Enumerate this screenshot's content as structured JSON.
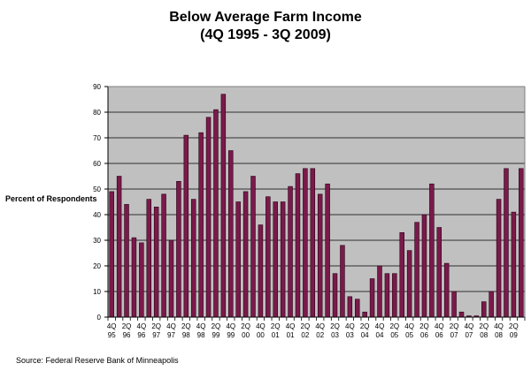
{
  "chart_data": {
    "type": "bar",
    "title_line1": "Below Average Farm Income",
    "title_line2": "(4Q 1995 - 3Q 2009)",
    "ylabel": "Percent of Respondents",
    "xlabel": "",
    "source": "Source: Federal Reserve Bank of Minneapolis",
    "ylim": [
      0,
      90
    ],
    "yticks": [
      0,
      10,
      20,
      30,
      40,
      50,
      60,
      70,
      80,
      90
    ],
    "grid": true,
    "colors": {
      "bar_fill": "#7a1a4a",
      "bar_edge": "#2a0016",
      "plot_bg": "#c0c0c0",
      "grid": "#000000"
    },
    "categories": [
      "4Q95",
      "1Q96",
      "2Q96",
      "3Q96",
      "4Q96",
      "1Q97",
      "2Q97",
      "3Q97",
      "4Q97",
      "1Q98",
      "2Q98",
      "3Q98",
      "4Q98",
      "1Q99",
      "2Q99",
      "3Q99",
      "4Q99",
      "1Q00",
      "2Q00",
      "3Q00",
      "4Q00",
      "1Q01",
      "2Q01",
      "3Q01",
      "4Q01",
      "1Q02",
      "2Q02",
      "3Q02",
      "4Q02",
      "1Q03",
      "2Q03",
      "3Q03",
      "4Q03",
      "1Q04",
      "2Q04",
      "3Q04",
      "4Q04",
      "1Q05",
      "2Q05",
      "3Q05",
      "4Q05",
      "1Q06",
      "2Q06",
      "3Q06",
      "4Q06",
      "1Q07",
      "2Q07",
      "3Q07",
      "4Q07",
      "1Q08",
      "2Q08",
      "3Q08",
      "4Q08",
      "1Q09",
      "2Q09",
      "3Q09"
    ],
    "tick_labels": [
      {
        "index": 0,
        "q": "4Q",
        "yr": "95"
      },
      {
        "index": 2,
        "q": "2Q",
        "yr": "96"
      },
      {
        "index": 4,
        "q": "4Q",
        "yr": "96"
      },
      {
        "index": 6,
        "q": "2Q",
        "yr": "97"
      },
      {
        "index": 8,
        "q": "4Q",
        "yr": "97"
      },
      {
        "index": 10,
        "q": "2Q",
        "yr": "98"
      },
      {
        "index": 12,
        "q": "4Q",
        "yr": "98"
      },
      {
        "index": 14,
        "q": "2Q",
        "yr": "99"
      },
      {
        "index": 16,
        "q": "4Q",
        "yr": "99"
      },
      {
        "index": 18,
        "q": "2Q",
        "yr": "00"
      },
      {
        "index": 20,
        "q": "4Q",
        "yr": "00"
      },
      {
        "index": 22,
        "q": "2Q",
        "yr": "01"
      },
      {
        "index": 24,
        "q": "4Q",
        "yr": "01"
      },
      {
        "index": 26,
        "q": "2Q",
        "yr": "02"
      },
      {
        "index": 28,
        "q": "4Q",
        "yr": "02"
      },
      {
        "index": 30,
        "q": "2Q",
        "yr": "03"
      },
      {
        "index": 32,
        "q": "4Q",
        "yr": "03"
      },
      {
        "index": 34,
        "q": "2Q",
        "yr": "04"
      },
      {
        "index": 36,
        "q": "4Q",
        "yr": "04"
      },
      {
        "index": 38,
        "q": "2Q",
        "yr": "05"
      },
      {
        "index": 40,
        "q": "4Q",
        "yr": "05"
      },
      {
        "index": 42,
        "q": "2Q",
        "yr": "06"
      },
      {
        "index": 44,
        "q": "4Q",
        "yr": "06"
      },
      {
        "index": 46,
        "q": "2Q",
        "yr": "07"
      },
      {
        "index": 48,
        "q": "4Q",
        "yr": "07"
      },
      {
        "index": 50,
        "q": "2Q",
        "yr": "08"
      },
      {
        "index": 52,
        "q": "4Q",
        "yr": "08"
      },
      {
        "index": 54,
        "q": "2Q",
        "yr": "09"
      }
    ],
    "values": [
      49,
      55,
      44,
      31,
      29,
      46,
      43,
      48,
      30,
      53,
      71,
      46,
      72,
      78,
      81,
      87,
      65,
      45,
      49,
      55,
      36,
      47,
      45,
      45,
      51,
      56,
      58,
      58,
      48,
      52,
      17,
      28,
      8,
      7,
      2,
      15,
      20,
      17,
      17,
      33,
      26,
      37,
      40,
      52,
      35,
      21,
      10,
      2,
      0.5,
      0.5,
      6,
      10,
      46,
      58,
      41,
      58
    ]
  }
}
